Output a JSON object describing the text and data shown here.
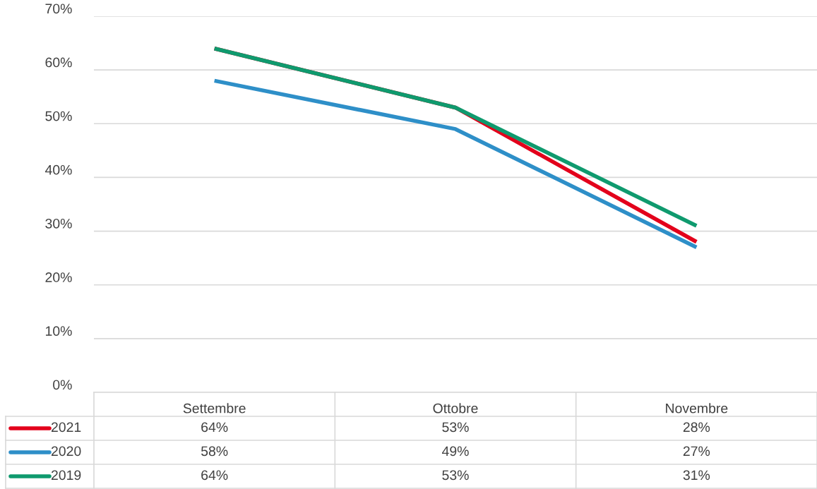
{
  "chart_data": {
    "type": "line",
    "categories": [
      "Settembre",
      "Ottobre",
      "Novembre"
    ],
    "series": [
      {
        "name": "2021",
        "color": "#e3001b",
        "values": [
          64,
          53,
          28
        ],
        "value_labels": [
          "64%",
          "53%",
          "28%"
        ]
      },
      {
        "name": "2020",
        "color": "#2e8fc8",
        "values": [
          58,
          49,
          27
        ],
        "value_labels": [
          "58%",
          "49%",
          "27%"
        ]
      },
      {
        "name": "2019",
        "color": "#0f9a6e",
        "values": [
          64,
          53,
          31
        ],
        "value_labels": [
          "64%",
          "53%",
          "31%"
        ]
      }
    ],
    "ylim": [
      0,
      70
    ],
    "yticks": [
      {
        "value": 0,
        "label": "0%"
      },
      {
        "value": 10,
        "label": "10%"
      },
      {
        "value": 20,
        "label": "20%"
      },
      {
        "value": 30,
        "label": "30%"
      },
      {
        "value": 40,
        "label": "40%"
      },
      {
        "value": 50,
        "label": "50%"
      },
      {
        "value": 60,
        "label": "60%"
      },
      {
        "value": 70,
        "label": "70%"
      }
    ],
    "grid": "y",
    "marker": "none",
    "line_style": "solid",
    "legend": "bottom"
  }
}
